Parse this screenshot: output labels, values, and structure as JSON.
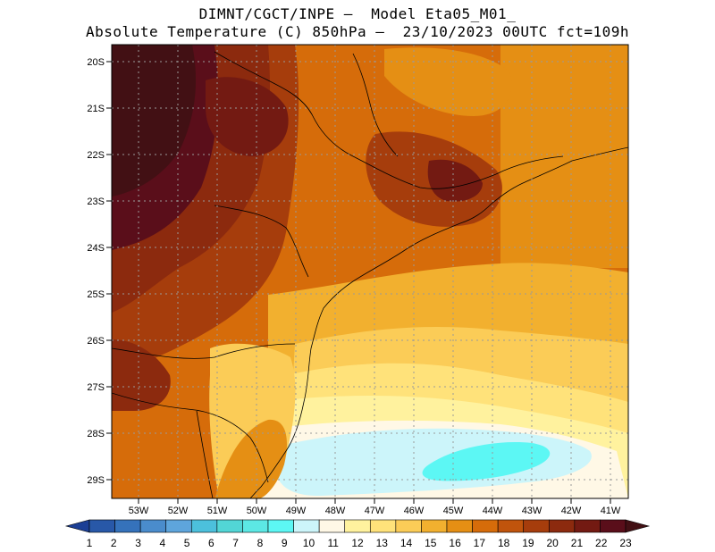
{
  "header": {
    "line1": "DIMNT/CGCT/INPE –  Model Eta05_M01_",
    "line2": "Absolute Temperature (C) 850hPa –  23/10/2023 00UTC fct=109h"
  },
  "map": {
    "lat_labels": [
      "20S",
      "21S",
      "22S",
      "23S",
      "24S",
      "25S",
      "26S",
      "27S",
      "28S",
      "29S"
    ],
    "lon_labels": [
      "53W",
      "52W",
      "51W",
      "50W",
      "49W",
      "48W",
      "47W",
      "46W",
      "45W",
      "44W",
      "43W",
      "42W",
      "41W"
    ]
  },
  "colorbar": {
    "labels": [
      "1",
      "2",
      "3",
      "4",
      "5",
      "6",
      "7",
      "8",
      "9",
      "10",
      "11",
      "12",
      "13",
      "14",
      "15",
      "16",
      "17",
      "18",
      "19",
      "20",
      "21",
      "22",
      "23"
    ],
    "colors": [
      "#1c3f95",
      "#2858a8",
      "#3572bb",
      "#4a8ccc",
      "#5ea5dc",
      "#4cc0dc",
      "#52d6d6",
      "#5ce8e4",
      "#5cf7f4",
      "#ccf5fa",
      "#fff8e6",
      "#fff29e",
      "#ffe27a",
      "#fbcc57",
      "#f2b02f",
      "#e58f14",
      "#d66c0a",
      "#c0540c",
      "#a63d0c",
      "#8c2a0e",
      "#731a12",
      "#5a0e1a",
      "#421014"
    ]
  }
}
